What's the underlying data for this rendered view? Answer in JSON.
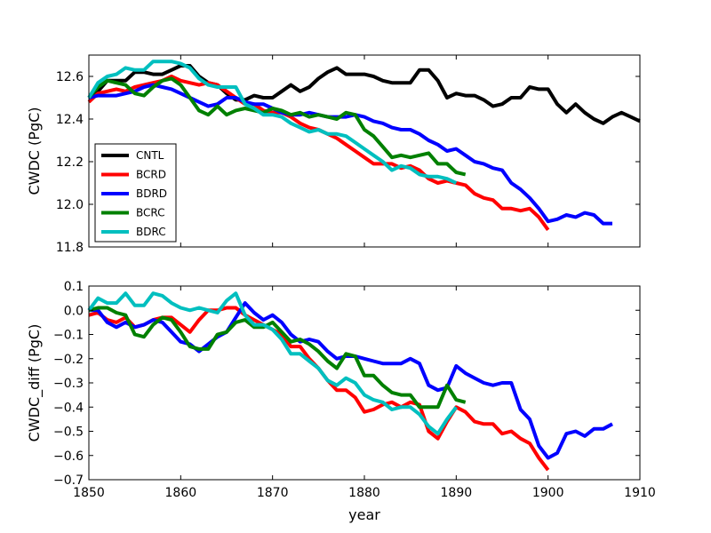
{
  "chart_data": [
    {
      "type": "line",
      "name": "top",
      "ylabel": "CWDC (PgC)",
      "xlabel": "",
      "xlim": [
        1850,
        1910
      ],
      "ylim": [
        11.8,
        12.7
      ],
      "yticks": [
        "11.8",
        "12.0",
        "12.2",
        "12.4",
        "12.6"
      ],
      "ytick_values": [
        11.8,
        12.0,
        12.2,
        12.4,
        12.6
      ],
      "legend_position": "center-left",
      "series": [
        {
          "name": "CNTL",
          "color": "#000000",
          "x": [
            1850,
            1851,
            1852,
            1853,
            1854,
            1855,
            1856,
            1857,
            1858,
            1859,
            1860,
            1861,
            1862,
            1863,
            1864,
            1865,
            1866,
            1867,
            1868,
            1869,
            1870,
            1871,
            1872,
            1873,
            1874,
            1875,
            1876,
            1877,
            1878,
            1879,
            1880,
            1881,
            1882,
            1883,
            1884,
            1885,
            1886,
            1887,
            1888,
            1889,
            1890,
            1891,
            1892,
            1893,
            1894,
            1895,
            1896,
            1897,
            1898,
            1899,
            1900,
            1901,
            1902,
            1903,
            1904,
            1905,
            1906,
            1907,
            1908,
            1909,
            1910
          ],
          "y": [
            12.5,
            12.53,
            12.58,
            12.58,
            12.58,
            12.62,
            12.62,
            12.61,
            12.61,
            12.63,
            12.65,
            12.65,
            12.6,
            12.57,
            12.56,
            12.52,
            12.49,
            12.49,
            12.51,
            12.5,
            12.5,
            12.53,
            12.56,
            12.53,
            12.55,
            12.59,
            12.62,
            12.64,
            12.61,
            12.61,
            12.61,
            12.6,
            12.58,
            12.57,
            12.57,
            12.57,
            12.63,
            12.63,
            12.58,
            12.5,
            12.52,
            12.51,
            12.51,
            12.49,
            12.46,
            12.47,
            12.5,
            12.5,
            12.55,
            12.54,
            12.54,
            12.47,
            12.43,
            12.47,
            12.43,
            12.4,
            12.38,
            12.41,
            12.43,
            12.41,
            12.39
          ]
        },
        {
          "name": "BCRD",
          "color": "#ff0000",
          "x": [
            1850,
            1851,
            1852,
            1853,
            1854,
            1855,
            1856,
            1857,
            1858,
            1859,
            1860,
            1861,
            1862,
            1863,
            1864,
            1865,
            1866,
            1867,
            1868,
            1869,
            1870,
            1871,
            1872,
            1873,
            1874,
            1875,
            1876,
            1877,
            1878,
            1879,
            1880,
            1881,
            1882,
            1883,
            1884,
            1885,
            1886,
            1887,
            1888,
            1889,
            1890,
            1891,
            1892,
            1893,
            1894,
            1895,
            1896,
            1897,
            1898,
            1899,
            1900
          ],
          "y": [
            12.48,
            12.52,
            12.53,
            12.54,
            12.53,
            12.55,
            12.56,
            12.57,
            12.58,
            12.6,
            12.58,
            12.57,
            12.56,
            12.57,
            12.56,
            12.53,
            12.5,
            12.47,
            12.47,
            12.44,
            12.43,
            12.43,
            12.41,
            12.38,
            12.36,
            12.35,
            12.33,
            12.31,
            12.28,
            12.25,
            12.22,
            12.19,
            12.19,
            12.19,
            12.17,
            12.18,
            12.16,
            12.12,
            12.1,
            12.11,
            12.1,
            12.09,
            12.05,
            12.03,
            12.02,
            11.98,
            11.98,
            11.97,
            11.98,
            11.94,
            11.88
          ]
        },
        {
          "name": "BDRD",
          "color": "#0000ff",
          "x": [
            1850,
            1851,
            1852,
            1853,
            1854,
            1855,
            1856,
            1857,
            1858,
            1859,
            1860,
            1861,
            1862,
            1863,
            1864,
            1865,
            1866,
            1867,
            1868,
            1869,
            1870,
            1871,
            1872,
            1873,
            1874,
            1875,
            1876,
            1877,
            1878,
            1879,
            1880,
            1881,
            1882,
            1883,
            1884,
            1885,
            1886,
            1887,
            1888,
            1889,
            1890,
            1891,
            1892,
            1893,
            1894,
            1895,
            1896,
            1897,
            1898,
            1899,
            1900,
            1901,
            1902,
            1903,
            1904,
            1905,
            1906,
            1907
          ],
          "y": [
            12.5,
            12.51,
            12.51,
            12.51,
            12.52,
            12.53,
            12.55,
            12.56,
            12.55,
            12.54,
            12.52,
            12.5,
            12.48,
            12.46,
            12.47,
            12.5,
            12.5,
            12.48,
            12.47,
            12.47,
            12.45,
            12.43,
            12.42,
            12.42,
            12.43,
            12.42,
            12.41,
            12.41,
            12.41,
            12.42,
            12.41,
            12.39,
            12.38,
            12.36,
            12.35,
            12.35,
            12.33,
            12.3,
            12.28,
            12.25,
            12.26,
            12.23,
            12.2,
            12.19,
            12.17,
            12.16,
            12.1,
            12.07,
            12.03,
            11.98,
            11.92,
            11.93,
            11.95,
            11.94,
            11.96,
            11.95,
            11.91,
            11.91
          ]
        },
        {
          "name": "BCRC",
          "color": "#008000",
          "x": [
            1850,
            1851,
            1852,
            1853,
            1854,
            1855,
            1856,
            1857,
            1858,
            1859,
            1860,
            1861,
            1862,
            1863,
            1864,
            1865,
            1866,
            1867,
            1868,
            1869,
            1870,
            1871,
            1872,
            1873,
            1874,
            1875,
            1876,
            1877,
            1878,
            1879,
            1880,
            1881,
            1882,
            1883,
            1884,
            1885,
            1886,
            1887,
            1888,
            1889,
            1890,
            1891
          ],
          "y": [
            12.5,
            12.55,
            12.58,
            12.57,
            12.56,
            12.52,
            12.51,
            12.55,
            12.58,
            12.59,
            12.56,
            12.5,
            12.44,
            12.42,
            12.46,
            12.42,
            12.44,
            12.45,
            12.44,
            12.43,
            12.45,
            12.44,
            12.42,
            12.43,
            12.41,
            12.42,
            12.41,
            12.4,
            12.43,
            12.42,
            12.35,
            12.32,
            12.27,
            12.22,
            12.23,
            12.22,
            12.23,
            12.24,
            12.19,
            12.19,
            12.15,
            12.14
          ]
        },
        {
          "name": "BDRC",
          "color": "#00bfbf",
          "x": [
            1850,
            1851,
            1852,
            1853,
            1854,
            1855,
            1856,
            1857,
            1858,
            1859,
            1860,
            1861,
            1862,
            1863,
            1864,
            1865,
            1866,
            1867,
            1868,
            1869,
            1870,
            1871,
            1872,
            1873,
            1874,
            1875,
            1876,
            1877,
            1878,
            1879,
            1880,
            1881,
            1882,
            1883,
            1884,
            1885,
            1886,
            1887,
            1888,
            1889,
            1890
          ],
          "y": [
            12.5,
            12.57,
            12.6,
            12.61,
            12.64,
            12.63,
            12.63,
            12.67,
            12.67,
            12.67,
            12.66,
            12.64,
            12.59,
            12.56,
            12.55,
            12.55,
            12.55,
            12.47,
            12.45,
            12.42,
            12.42,
            12.41,
            12.38,
            12.36,
            12.34,
            12.35,
            12.33,
            12.33,
            12.32,
            12.29,
            12.26,
            12.23,
            12.2,
            12.16,
            12.18,
            12.17,
            12.14,
            12.13,
            12.13,
            12.12,
            12.1
          ]
        }
      ]
    },
    {
      "type": "line",
      "name": "bottom",
      "ylabel": "CWDC_diff (PgC)",
      "xlabel": "year",
      "xlim": [
        1850,
        1910
      ],
      "ylim": [
        -0.7,
        0.1
      ],
      "xticks": [
        "1850",
        "1860",
        "1870",
        "1880",
        "1890",
        "1900",
        "1910"
      ],
      "xtick_values": [
        1850,
        1860,
        1870,
        1880,
        1890,
        1900,
        1910
      ],
      "yticks": [
        "−0.7",
        "−0.6",
        "−0.5",
        "−0.4",
        "−0.3",
        "−0.2",
        "−0.1",
        "0.0",
        "0.1"
      ],
      "ytick_values": [
        -0.7,
        -0.6,
        -0.5,
        -0.4,
        -0.3,
        -0.2,
        -0.1,
        0.0,
        0.1
      ],
      "series": [
        {
          "name": "BCRD",
          "color": "#ff0000",
          "x": [
            1850,
            1851,
            1852,
            1853,
            1854,
            1855,
            1856,
            1857,
            1858,
            1859,
            1860,
            1861,
            1862,
            1863,
            1864,
            1865,
            1866,
            1867,
            1868,
            1869,
            1870,
            1871,
            1872,
            1873,
            1874,
            1875,
            1876,
            1877,
            1878,
            1879,
            1880,
            1881,
            1882,
            1883,
            1884,
            1885,
            1886,
            1887,
            1888,
            1889,
            1890,
            1891,
            1892,
            1893,
            1894,
            1895,
            1896,
            1897,
            1898,
            1899,
            1900
          ],
          "y": [
            -0.02,
            -0.01,
            -0.04,
            -0.05,
            -0.03,
            -0.07,
            -0.06,
            -0.04,
            -0.03,
            -0.03,
            -0.06,
            -0.09,
            -0.04,
            0.0,
            0.0,
            0.01,
            0.01,
            -0.02,
            -0.04,
            -0.06,
            -0.08,
            -0.1,
            -0.15,
            -0.15,
            -0.2,
            -0.24,
            -0.29,
            -0.33,
            -0.33,
            -0.36,
            -0.42,
            -0.41,
            -0.39,
            -0.38,
            -0.4,
            -0.38,
            -0.39,
            -0.5,
            -0.53,
            -0.46,
            -0.4,
            -0.42,
            -0.46,
            -0.47,
            -0.47,
            -0.51,
            -0.5,
            -0.53,
            -0.55,
            -0.61,
            -0.66
          ]
        },
        {
          "name": "BDRD",
          "color": "#0000ff",
          "x": [
            1850,
            1851,
            1852,
            1853,
            1854,
            1855,
            1856,
            1857,
            1858,
            1859,
            1860,
            1861,
            1862,
            1863,
            1864,
            1865,
            1866,
            1867,
            1868,
            1869,
            1870,
            1871,
            1872,
            1873,
            1874,
            1875,
            1876,
            1877,
            1878,
            1879,
            1880,
            1881,
            1882,
            1883,
            1884,
            1885,
            1886,
            1887,
            1888,
            1889,
            1890,
            1891,
            1892,
            1893,
            1894,
            1895,
            1896,
            1897,
            1898,
            1899,
            1900,
            1901,
            1902,
            1903,
            1904,
            1905,
            1906,
            1907
          ],
          "y": [
            0.0,
            0.0,
            -0.05,
            -0.07,
            -0.05,
            -0.07,
            -0.06,
            -0.04,
            -0.05,
            -0.09,
            -0.13,
            -0.14,
            -0.17,
            -0.14,
            -0.11,
            -0.09,
            -0.03,
            0.03,
            -0.01,
            -0.04,
            -0.02,
            -0.05,
            -0.1,
            -0.13,
            -0.12,
            -0.13,
            -0.17,
            -0.2,
            -0.19,
            -0.19,
            -0.2,
            -0.21,
            -0.22,
            -0.22,
            -0.22,
            -0.2,
            -0.22,
            -0.31,
            -0.33,
            -0.32,
            -0.23,
            -0.26,
            -0.28,
            -0.3,
            -0.31,
            -0.3,
            -0.3,
            -0.41,
            -0.45,
            -0.56,
            -0.61,
            -0.59,
            -0.51,
            -0.5,
            -0.52,
            -0.49,
            -0.49,
            -0.47
          ]
        },
        {
          "name": "BCRC",
          "color": "#008000",
          "x": [
            1850,
            1851,
            1852,
            1853,
            1854,
            1855,
            1856,
            1857,
            1858,
            1859,
            1860,
            1861,
            1862,
            1863,
            1864,
            1865,
            1866,
            1867,
            1868,
            1869,
            1870,
            1871,
            1872,
            1873,
            1874,
            1875,
            1876,
            1877,
            1878,
            1879,
            1880,
            1881,
            1882,
            1883,
            1884,
            1885,
            1886,
            1887,
            1888,
            1889,
            1890,
            1891
          ],
          "y": [
            0.0,
            0.01,
            0.01,
            -0.01,
            -0.02,
            -0.1,
            -0.11,
            -0.06,
            -0.03,
            -0.04,
            -0.09,
            -0.15,
            -0.16,
            -0.16,
            -0.1,
            -0.09,
            -0.05,
            -0.04,
            -0.07,
            -0.07,
            -0.05,
            -0.09,
            -0.13,
            -0.12,
            -0.14,
            -0.17,
            -0.21,
            -0.24,
            -0.18,
            -0.19,
            -0.27,
            -0.27,
            -0.31,
            -0.34,
            -0.35,
            -0.35,
            -0.4,
            -0.4,
            -0.4,
            -0.31,
            -0.37,
            -0.38
          ]
        },
        {
          "name": "BDRC",
          "color": "#00bfbf",
          "x": [
            1850,
            1851,
            1852,
            1853,
            1854,
            1855,
            1856,
            1857,
            1858,
            1859,
            1860,
            1861,
            1862,
            1863,
            1864,
            1865,
            1866,
            1867,
            1868,
            1869,
            1870,
            1871,
            1872,
            1873,
            1874,
            1875,
            1876,
            1877,
            1878,
            1879,
            1880,
            1881,
            1882,
            1883,
            1884,
            1885,
            1886,
            1887,
            1888,
            1889,
            1890
          ],
          "y": [
            0.0,
            0.05,
            0.03,
            0.03,
            0.07,
            0.02,
            0.02,
            0.07,
            0.06,
            0.03,
            0.01,
            0.0,
            0.01,
            0.0,
            -0.01,
            0.04,
            0.07,
            -0.02,
            -0.06,
            -0.06,
            -0.08,
            -0.12,
            -0.18,
            -0.18,
            -0.21,
            -0.24,
            -0.29,
            -0.31,
            -0.28,
            -0.3,
            -0.35,
            -0.37,
            -0.38,
            -0.41,
            -0.4,
            -0.4,
            -0.43,
            -0.48,
            -0.51,
            -0.45,
            -0.4
          ]
        }
      ]
    }
  ]
}
